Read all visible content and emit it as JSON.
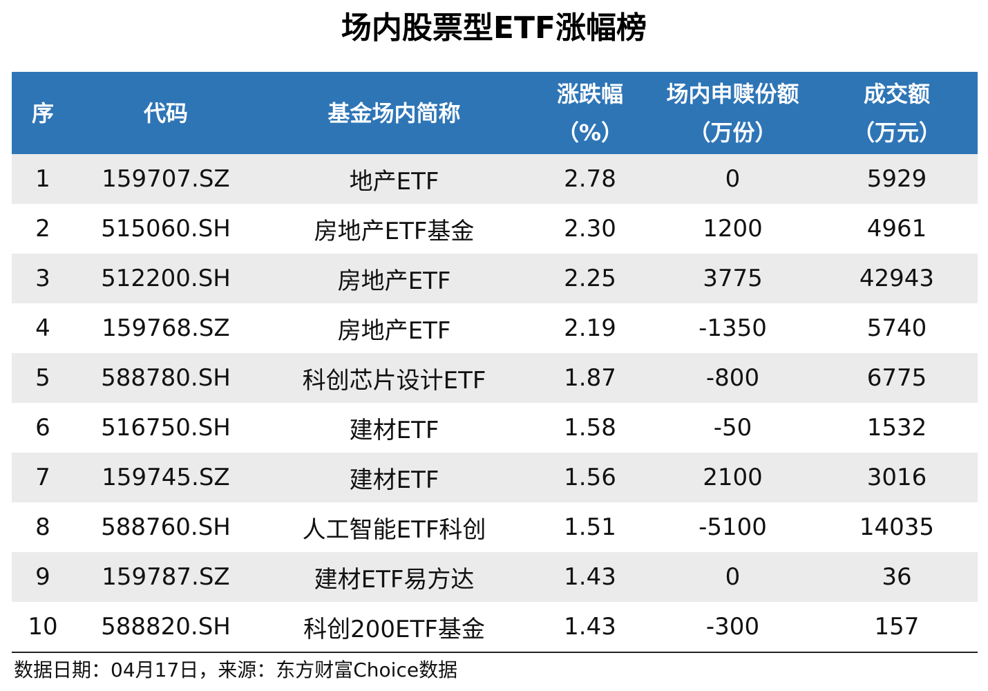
{
  "title": "场内股票型ETF涨幅榜",
  "headers": [
    {
      "line1": "序",
      "line2": ""
    },
    {
      "line1": "代码",
      "line2": ""
    },
    {
      "line1": "基金场内简称",
      "line2": ""
    },
    {
      "line1": "涨跌幅",
      "line2": "（%）"
    },
    {
      "line1": "场内申赎份额",
      "line2": "（万份）"
    },
    {
      "line1": "成交额",
      "line2": "（万元）"
    }
  ],
  "rows": [
    {
      "rank": "1",
      "code": "159707.SZ",
      "name": "地产ETF",
      "change": "2.78",
      "shares": "0",
      "turnover": "5929"
    },
    {
      "rank": "2",
      "code": "515060.SH",
      "name": "房地产ETF基金",
      "change": "2.30",
      "shares": "1200",
      "turnover": "4961"
    },
    {
      "rank": "3",
      "code": "512200.SH",
      "name": "房地产ETF",
      "change": "2.25",
      "shares": "3775",
      "turnover": "42943"
    },
    {
      "rank": "4",
      "code": "159768.SZ",
      "name": "房地产ETF",
      "change": "2.19",
      "shares": "-1350",
      "turnover": "5740"
    },
    {
      "rank": "5",
      "code": "588780.SH",
      "name": "科创芯片设计ETF",
      "change": "1.87",
      "shares": "-800",
      "turnover": "6775"
    },
    {
      "rank": "6",
      "code": "516750.SH",
      "name": "建材ETF",
      "change": "1.58",
      "shares": "-50",
      "turnover": "1532"
    },
    {
      "rank": "7",
      "code": "159745.SZ",
      "name": "建材ETF",
      "change": "1.56",
      "shares": "2100",
      "turnover": "3016"
    },
    {
      "rank": "8",
      "code": "588760.SH",
      "name": "人工智能ETF科创",
      "change": "1.51",
      "shares": "-5100",
      "turnover": "14035"
    },
    {
      "rank": "9",
      "code": "159787.SZ",
      "name": "建材ETF易方达",
      "change": "1.43",
      "shares": "0",
      "turnover": "36"
    },
    {
      "rank": "10",
      "code": "588820.SH",
      "name": "科创200ETF基金",
      "change": "1.43",
      "shares": "-300",
      "turnover": "157"
    }
  ],
  "footer": "数据日期：04月17日，来源：东方财富Choice数据",
  "colors": {
    "header_bg": "#2e75b6",
    "stripe": "#ebebeb"
  }
}
